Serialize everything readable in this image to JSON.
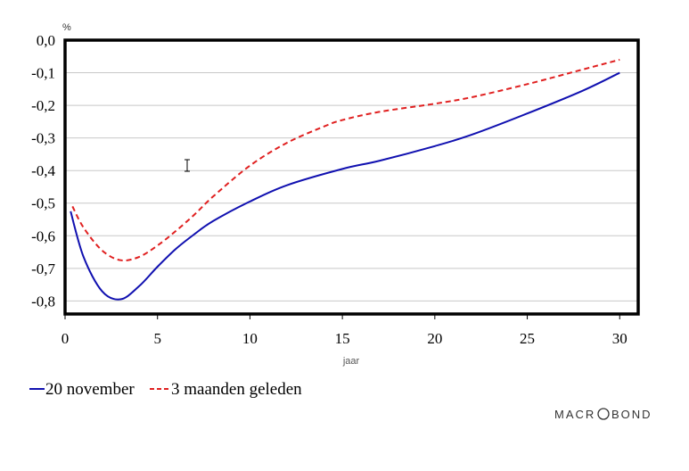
{
  "chart_data": {
    "type": "line",
    "unit_label": "%",
    "xlabel": "jaar",
    "xlim": [
      0,
      31
    ],
    "ylim": [
      -0.84,
      0.0
    ],
    "x_ticks": [
      0,
      5,
      10,
      15,
      20,
      25,
      30
    ],
    "y_ticks": [
      0.0,
      -0.1,
      -0.2,
      -0.3,
      -0.4,
      -0.5,
      -0.6,
      -0.7,
      -0.8
    ],
    "y_tick_labels": [
      "0,0",
      "-0,1",
      "-0,2",
      "-0,3",
      "-0,4",
      "-0,5",
      "-0,6",
      "-0,7",
      "-0,8"
    ],
    "x_tick_labels": [
      "0",
      "5",
      "10",
      "15",
      "20",
      "25",
      "30"
    ],
    "grid": "horizontal",
    "legend_position": "bottom-left",
    "series": [
      {
        "name": "20 november",
        "color": "#1010b0",
        "dash": "solid",
        "x": [
          0.3,
          1,
          2,
          3,
          4,
          5,
          6,
          7,
          8,
          10,
          12,
          15,
          17,
          20,
          22,
          25,
          28,
          30
        ],
        "y": [
          -0.525,
          -0.665,
          -0.77,
          -0.795,
          -0.755,
          -0.695,
          -0.64,
          -0.595,
          -0.555,
          -0.495,
          -0.445,
          -0.395,
          -0.37,
          -0.325,
          -0.29,
          -0.225,
          -0.155,
          -0.1
        ]
      },
      {
        "name": "3 maanden geleden",
        "color": "#e02020",
        "dash": "dashed",
        "x": [
          0.4,
          1,
          2,
          3,
          4,
          5,
          6,
          7,
          8,
          10,
          12,
          14,
          15,
          17,
          20,
          22,
          25,
          28,
          30
        ],
        "y": [
          -0.51,
          -0.575,
          -0.645,
          -0.675,
          -0.665,
          -0.63,
          -0.585,
          -0.535,
          -0.48,
          -0.385,
          -0.315,
          -0.265,
          -0.245,
          -0.22,
          -0.195,
          -0.175,
          -0.135,
          -0.09,
          -0.06
        ]
      }
    ]
  },
  "brand": {
    "text_left": "MACR",
    "text_right": "BOND"
  }
}
